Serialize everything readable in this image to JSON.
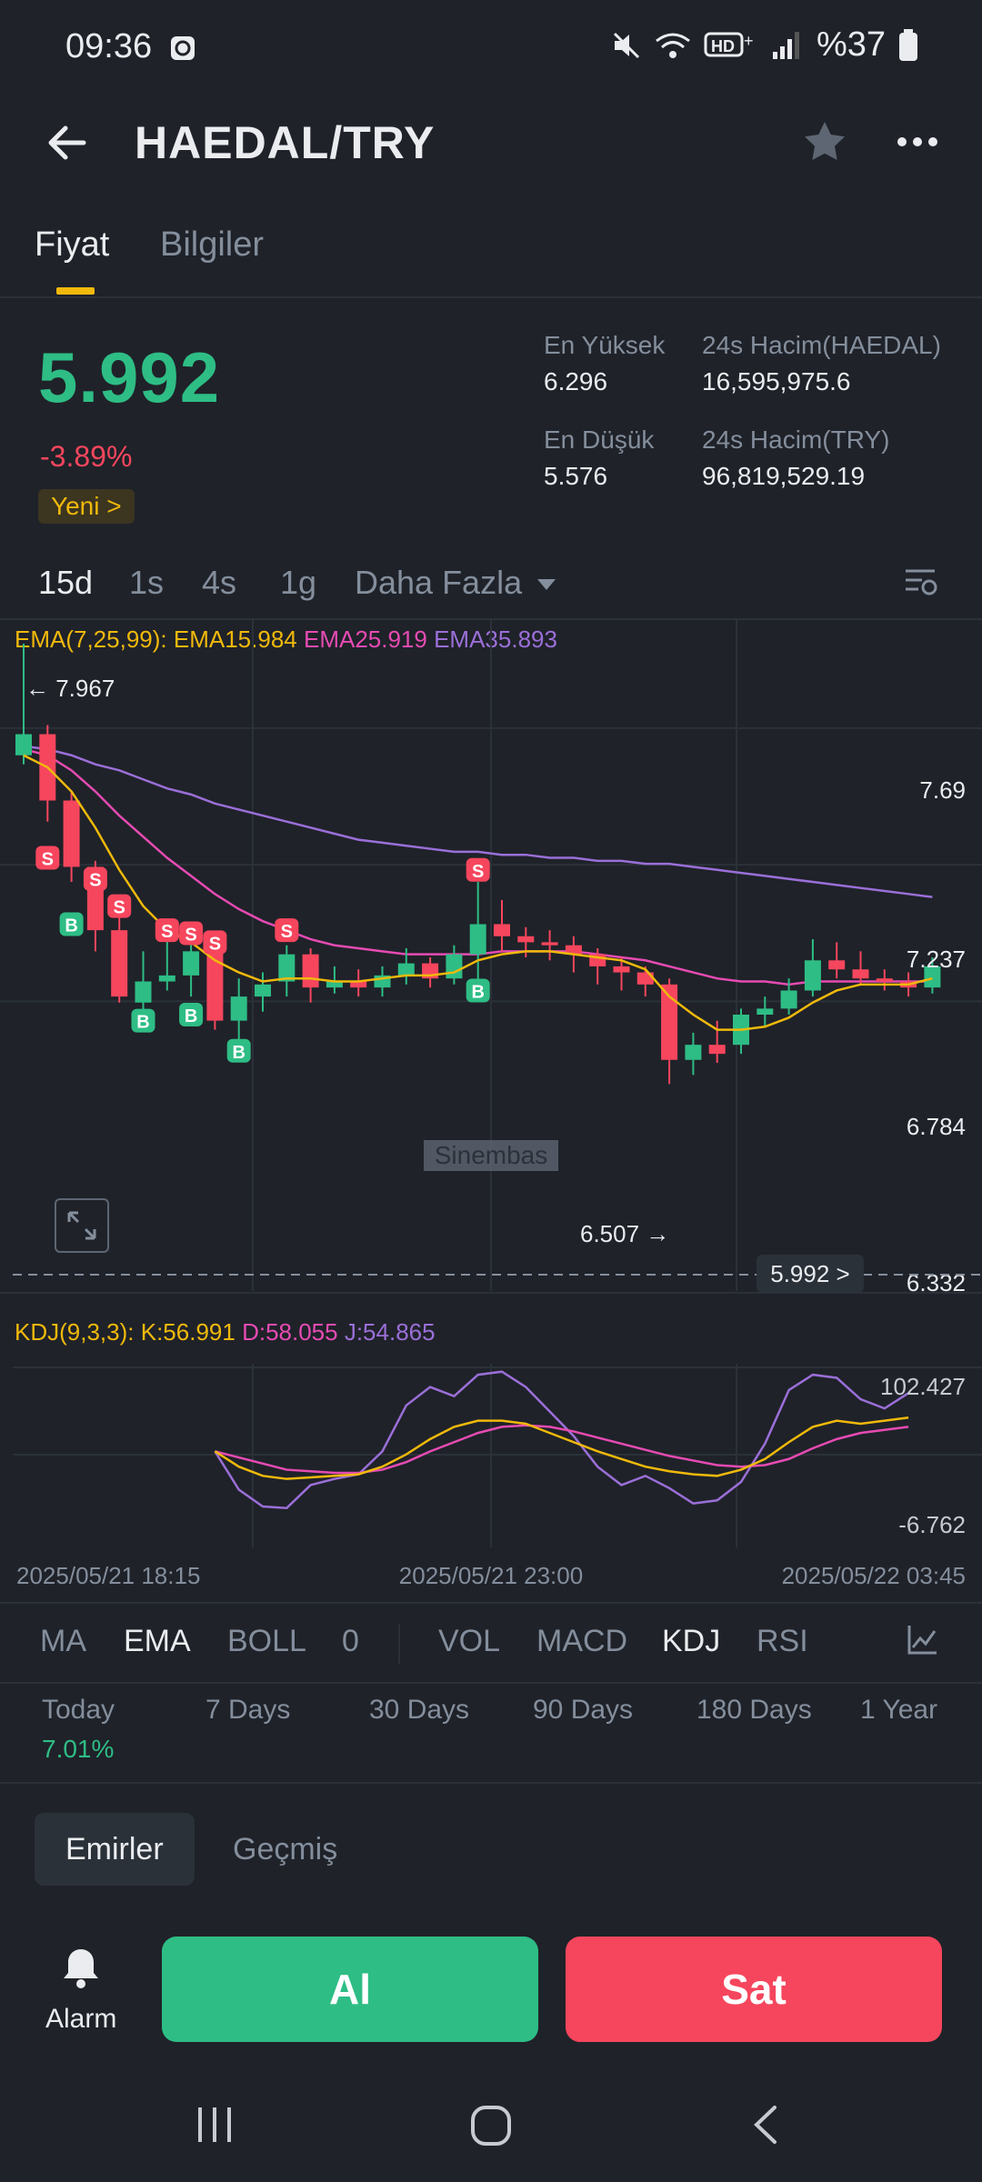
{
  "status": {
    "time": "09:36",
    "battery": "%37"
  },
  "header": {
    "title": "HAEDAL/TRY"
  },
  "tabs": [
    {
      "label": "Fiyat"
    },
    {
      "label": "Bilgiler"
    }
  ],
  "price": {
    "last": "5.992",
    "change": "-3.89%",
    "badge": "Yeni >",
    "stats": {
      "high_label": "En Yüksek",
      "high": "6.296",
      "low_label": "En Düşük",
      "low": "5.576",
      "vol_base_label": "24s Hacim(HAEDAL)",
      "vol_base": "16,595,975.6",
      "vol_quote_label": "24s Hacim(TRY)",
      "vol_quote": "96,819,529.19"
    }
  },
  "timeframes": [
    "15d",
    "1s",
    "4s",
    "1g",
    "Daha Fazla"
  ],
  "chart": {
    "ema_label": "EMA(7,25,99):",
    "ema7": "EMA15.984",
    "ema25": "EMA25.919",
    "ema99": "EMA35.893",
    "kdj_label": "KDJ(9,3,3):",
    "kdj_k": "K:56.991",
    "kdj_d": "D:58.055",
    "kdj_j": "J:54.865",
    "high_marker": "← 7.967",
    "low_marker": "6.507 →",
    "last_price_tag": "5.992 >",
    "axis": [
      "7.69",
      "7.237",
      "6.784",
      "6.332"
    ],
    "kdj_axis": [
      "102.427",
      "-6.762"
    ],
    "time_labels": [
      "2025/05/21 18:15",
      "2025/05/21 23:00",
      "2025/05/22 03:45"
    ],
    "watermark": "Sinembas",
    "colors": {
      "up": "#2ebd85",
      "down": "#f6465d",
      "ema7": "#f0b90b",
      "ema25": "#e64bb3",
      "ema99": "#9b6fd8"
    }
  },
  "chart_data": {
    "type": "candlestick",
    "ylim": [
      6.33,
      7.97
    ],
    "candles": [
      {
        "o": 7.6,
        "c": 7.67,
        "h": 7.97,
        "l": 7.57
      },
      {
        "o": 7.67,
        "c": 7.45,
        "h": 7.7,
        "l": 7.38
      },
      {
        "o": 7.45,
        "c": 7.23,
        "h": 7.48,
        "l": 7.18
      },
      {
        "o": 7.23,
        "c": 7.02,
        "h": 7.25,
        "l": 6.95
      },
      {
        "o": 7.02,
        "c": 6.8,
        "h": 7.08,
        "l": 6.78
      },
      {
        "o": 6.78,
        "c": 6.85,
        "h": 6.95,
        "l": 6.75
      },
      {
        "o": 6.85,
        "c": 6.87,
        "h": 7.02,
        "l": 6.82
      },
      {
        "o": 6.87,
        "c": 6.95,
        "h": 7.03,
        "l": 6.8
      },
      {
        "o": 6.95,
        "c": 6.72,
        "h": 6.97,
        "l": 6.69
      },
      {
        "o": 6.72,
        "c": 6.8,
        "h": 6.86,
        "l": 6.65
      },
      {
        "o": 6.8,
        "c": 6.84,
        "h": 6.88,
        "l": 6.75
      },
      {
        "o": 6.85,
        "c": 6.94,
        "h": 6.97,
        "l": 6.8
      },
      {
        "o": 6.94,
        "c": 6.83,
        "h": 6.96,
        "l": 6.78
      },
      {
        "o": 6.83,
        "c": 6.85,
        "h": 6.9,
        "l": 6.81
      },
      {
        "o": 6.85,
        "c": 6.83,
        "h": 6.89,
        "l": 6.8
      },
      {
        "o": 6.83,
        "c": 6.87,
        "h": 6.9,
        "l": 6.8
      },
      {
        "o": 6.87,
        "c": 6.91,
        "h": 6.96,
        "l": 6.84
      },
      {
        "o": 6.91,
        "c": 6.86,
        "h": 6.93,
        "l": 6.83
      },
      {
        "o": 6.86,
        "c": 6.94,
        "h": 6.97,
        "l": 6.84
      },
      {
        "o": 6.94,
        "c": 7.04,
        "h": 7.18,
        "l": 6.84
      },
      {
        "o": 7.04,
        "c": 7.0,
        "h": 7.12,
        "l": 6.95
      },
      {
        "o": 7.0,
        "c": 6.98,
        "h": 7.03,
        "l": 6.93
      },
      {
        "o": 6.98,
        "c": 6.97,
        "h": 7.02,
        "l": 6.92
      },
      {
        "o": 6.97,
        "c": 6.94,
        "h": 7.0,
        "l": 6.88
      },
      {
        "o": 6.94,
        "c": 6.9,
        "h": 6.96,
        "l": 6.84
      },
      {
        "o": 6.9,
        "c": 6.88,
        "h": 6.93,
        "l": 6.82
      },
      {
        "o": 6.88,
        "c": 6.84,
        "h": 6.9,
        "l": 6.8
      },
      {
        "o": 6.84,
        "c": 6.59,
        "h": 6.86,
        "l": 6.51
      },
      {
        "o": 6.59,
        "c": 6.64,
        "h": 6.68,
        "l": 6.54
      },
      {
        "o": 6.64,
        "c": 6.61,
        "h": 6.72,
        "l": 6.58
      },
      {
        "o": 6.64,
        "c": 6.74,
        "h": 6.76,
        "l": 6.61
      },
      {
        "o": 6.74,
        "c": 6.76,
        "h": 6.8,
        "l": 6.7
      },
      {
        "o": 6.76,
        "c": 6.82,
        "h": 6.86,
        "l": 6.74
      },
      {
        "o": 6.82,
        "c": 6.92,
        "h": 6.99,
        "l": 6.8
      },
      {
        "o": 6.92,
        "c": 6.89,
        "h": 6.98,
        "l": 6.86
      },
      {
        "o": 6.89,
        "c": 6.86,
        "h": 6.95,
        "l": 6.84
      },
      {
        "o": 6.86,
        "c": 6.85,
        "h": 6.89,
        "l": 6.82
      },
      {
        "o": 6.85,
        "c": 6.83,
        "h": 6.88,
        "l": 6.8
      },
      {
        "o": 6.83,
        "c": 6.9,
        "h": 6.93,
        "l": 6.81
      }
    ],
    "ema7": [
      7.6,
      7.56,
      7.48,
      7.36,
      7.22,
      7.1,
      7.02,
      6.98,
      6.92,
      6.88,
      6.85,
      6.86,
      6.86,
      6.85,
      6.85,
      6.86,
      6.87,
      6.87,
      6.88,
      6.92,
      6.94,
      6.95,
      6.95,
      6.94,
      6.93,
      6.92,
      6.89,
      6.8,
      6.74,
      6.69,
      6.69,
      6.7,
      6.73,
      6.78,
      6.82,
      6.84,
      6.84,
      6.84,
      6.86
    ],
    "ema25": [
      7.62,
      7.6,
      7.55,
      7.48,
      7.4,
      7.33,
      7.26,
      7.2,
      7.14,
      7.09,
      7.05,
      7.02,
      6.99,
      6.97,
      6.96,
      6.95,
      6.94,
      6.94,
      6.94,
      6.94,
      6.95,
      6.95,
      6.95,
      6.95,
      6.94,
      6.93,
      6.92,
      6.9,
      6.88,
      6.86,
      6.85,
      6.85,
      6.84,
      6.85,
      6.85,
      6.85,
      6.85,
      6.85,
      6.85
    ],
    "ema99": [
      7.63,
      7.62,
      7.6,
      7.57,
      7.55,
      7.52,
      7.49,
      7.47,
      7.44,
      7.42,
      7.4,
      7.38,
      7.36,
      7.34,
      7.32,
      7.31,
      7.3,
      7.29,
      7.28,
      7.28,
      7.27,
      7.27,
      7.26,
      7.26,
      7.25,
      7.25,
      7.24,
      7.24,
      7.23,
      7.22,
      7.21,
      7.2,
      7.19,
      7.18,
      7.17,
      7.16,
      7.15,
      7.14,
      7.13
    ],
    "signals": [
      {
        "i": 1,
        "type": "S",
        "price": 7.26
      },
      {
        "i": 2,
        "type": "B",
        "price": 7.04
      },
      {
        "i": 3,
        "type": "S",
        "price": 7.19
      },
      {
        "i": 4,
        "type": "S",
        "price": 7.1
      },
      {
        "i": 5,
        "type": "B",
        "price": 6.72
      },
      {
        "i": 6,
        "type": "S",
        "price": 7.02
      },
      {
        "i": 7,
        "type": "S",
        "price": 7.01
      },
      {
        "i": 7,
        "type": "B",
        "price": 6.74
      },
      {
        "i": 8,
        "type": "S",
        "price": 6.98
      },
      {
        "i": 9,
        "type": "B",
        "price": 6.62
      },
      {
        "i": 11,
        "type": "S",
        "price": 7.02
      },
      {
        "i": 19,
        "type": "S",
        "price": 7.22
      },
      {
        "i": 19,
        "type": "B",
        "price": 6.82
      }
    ],
    "kdj": {
      "ylim": [
        -6.762,
        102.427
      ],
      "start": 8,
      "k": [
        50,
        40,
        34,
        32,
        33,
        34,
        35,
        40,
        48,
        58,
        66,
        70,
        70,
        68,
        62,
        56,
        50,
        45,
        40,
        37,
        35,
        34,
        38,
        45,
        56,
        66,
        70,
        68,
        70,
        72
      ],
      "d": [
        50,
        46,
        42,
        38,
        37,
        36,
        36,
        38,
        43,
        50,
        56,
        62,
        66,
        67,
        66,
        63,
        59,
        55,
        51,
        47,
        44,
        41,
        40,
        41,
        45,
        52,
        58,
        62,
        64,
        66
      ],
      "j": [
        50,
        25,
        14,
        13,
        28,
        32,
        35,
        50,
        80,
        92,
        86,
        100,
        102,
        92,
        76,
        60,
        40,
        28,
        34,
        26,
        16,
        18,
        30,
        55,
        90,
        100,
        98,
        84,
        78,
        88
      ]
    }
  },
  "indicators": [
    "MA",
    "EMA",
    "BOLL",
    "0",
    "VOL",
    "MACD",
    "KDJ",
    "RSI"
  ],
  "performance": {
    "labels": [
      "Today",
      "7 Days",
      "30 Days",
      "90 Days",
      "180 Days",
      "1 Year"
    ],
    "today_value": "7.01%"
  },
  "orders": {
    "tabs": [
      "Emirler",
      "Geçmiş"
    ]
  },
  "actions": {
    "alarm": "Alarm",
    "buy": "Al",
    "sell": "Sat"
  }
}
